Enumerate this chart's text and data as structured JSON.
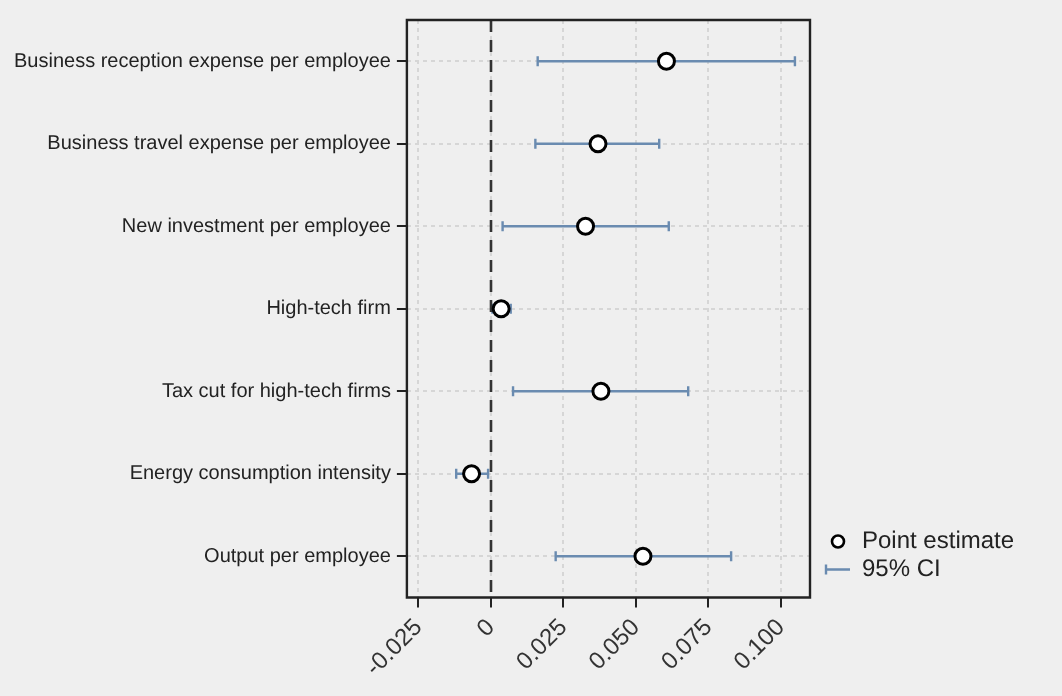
{
  "chart_data": {
    "type": "scatter",
    "orientation": "horizontal",
    "categories": [
      "Business reception expense per employee",
      "Business travel expense per employee",
      "New investment per employee",
      "High-tech firm",
      "Tax cut for high-tech firms",
      "Energy consumption intensity",
      "Output per employee"
    ],
    "series": [
      {
        "name": "Point estimate",
        "color": "#000000",
        "values": [
          0.0605,
          0.0369,
          0.0326,
          0.0035,
          0.0379,
          -0.0067,
          0.0524
        ],
        "errors": [
          [
            0.0161,
            0.1048
          ],
          [
            0.0153,
            0.058
          ],
          [
            0.004,
            0.0613
          ],
          [
            0.0005,
            0.0068
          ],
          [
            0.0076,
            0.068
          ],
          [
            -0.012,
            -0.001
          ],
          [
            0.0223,
            0.0828
          ]
        ]
      }
    ],
    "xlim": [
      -0.029,
      0.11
    ],
    "xticks": [
      {
        "value": -0.025,
        "label": "-0.025"
      },
      0,
      0.025,
      {
        "value": 0.05,
        "label": "0.050"
      },
      {
        "value": 0.075,
        "label": "0.075"
      },
      {
        "value": 0.1,
        "label": "0.100"
      }
    ],
    "ref_lines": [
      {
        "axis": "x",
        "value": 0,
        "line_style": "dashed",
        "color": "#333333"
      }
    ],
    "annotations": [
      "95% CI"
    ],
    "grid": true,
    "marker": "circle",
    "legend": "bottom right"
  }
}
